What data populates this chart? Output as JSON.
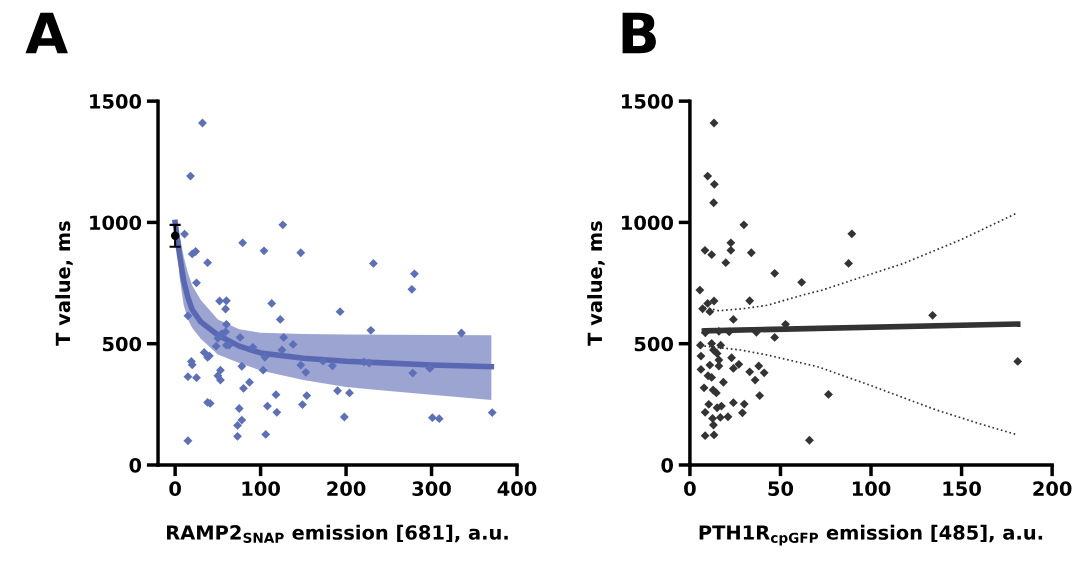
{
  "chart_data": [
    {
      "type": "scatter",
      "title": "A",
      "xlabel": "RAMP2$_{SNAP}$ emission [681], a.u.",
      "ylabel": "T value, ms",
      "xlim": [
        -20,
        400
      ],
      "xticks": [
        0,
        100,
        200,
        300,
        400
      ],
      "ylim": [
        0,
        1500
      ],
      "yticks": [
        0,
        500,
        1000,
        1500
      ],
      "marker": "diamond",
      "series": [
        {
          "type": "line",
          "color": "#5a68b4",
          "line_style": "solid",
          "marker": "none",
          "x": [
            0,
            5,
            10,
            15,
            20,
            30,
            50,
            75,
            100,
            150,
            200,
            250,
            300,
            370
          ],
          "values": [
            1000,
            870,
            760,
            690,
            640,
            590,
            536,
            490,
            462,
            440,
            428,
            420,
            412,
            405
          ],
          "lower": [
            990,
            780,
            660,
            600,
            565,
            520,
            455,
            420,
            390,
            350,
            322,
            305,
            290,
            268
          ],
          "upper": [
            1010,
            950,
            860,
            790,
            740,
            680,
            600,
            560,
            545,
            540,
            538,
            537,
            536,
            535
          ]
        },
        {
          "type": "scatter",
          "color": "#5b70b8",
          "x": [
            32,
            18,
            11,
            126,
            79,
            104,
            147,
            20,
            24,
            38,
            232,
            280,
            277,
            25,
            15,
            52,
            60,
            59,
            113,
            193,
            123,
            229,
            335,
            60,
            59,
            50,
            54,
            48,
            60,
            63,
            76,
            91,
            127,
            125,
            138,
            105,
            34,
            38,
            40,
            19,
            20,
            78,
            147,
            153,
            173,
            184,
            221,
            227,
            278,
            298,
            15,
            25,
            53,
            50,
            53,
            103,
            87,
            80,
            118,
            154,
            190,
            204,
            38,
            41,
            75,
            108,
            119,
            149,
            198,
            301,
            309,
            371,
            78,
            73,
            73,
            106,
            15
          ],
          "values": [
            1410,
            1191,
            952,
            990,
            916,
            883,
            875,
            870,
            880,
            834,
            831,
            788,
            724,
            751,
            615,
            676,
            677,
            643,
            666,
            632,
            600,
            555,
            544,
            580,
            549,
            522,
            540,
            490,
            494,
            494,
            526,
            485,
            526,
            474,
            497,
            444,
            464,
            444,
            450,
            427,
            413,
            407,
            412,
            382,
            428,
            409,
            425,
            420,
            379,
            398,
            364,
            360,
            391,
            368,
            350,
            391,
            341,
            316,
            290,
            286,
            306,
            297,
            258,
            254,
            233,
            243,
            217,
            249,
            198,
            195,
            191,
            216,
            185,
            163,
            118,
            126,
            100
          ]
        },
        {
          "type": "scatter",
          "color": "#000000",
          "marker": "circle",
          "x": [
            0
          ],
          "values": [
            945
          ],
          "errors": [
            45
          ]
        }
      ]
    },
    {
      "type": "scatter",
      "title": "B",
      "xlabel": "PTH1R$_{cpGFP}$ emission [485], a.u.",
      "ylabel": "T value, ms",
      "xlim": [
        0,
        200
      ],
      "xticks": [
        0,
        50,
        100,
        150,
        200
      ],
      "ylim": [
        0,
        1500
      ],
      "yticks": [
        0,
        500,
        1000,
        1500
      ],
      "marker": "diamond",
      "series": [
        {
          "type": "scatter",
          "color": "#333333",
          "x": [
            13.3,
            9.8,
            13.5,
            13.1,
            29.8,
            89.4,
            8.3,
            12,
            22.6,
            22.6,
            33.9,
            19.8,
            87.6,
            46.8,
            61.7,
            5.5,
            7,
            9.8,
            13.3,
            11,
            33,
            24,
            52.8,
            134,
            181,
            76.5,
            66,
            36.7,
            46.8,
            8.5,
            16,
            21.7,
            5.8,
            12,
            17,
            13,
            16,
            15,
            6.1,
            23,
            27,
            11,
            16,
            24,
            6.1,
            33,
            38,
            41,
            10,
            12,
            18.5,
            36,
            7.8,
            12.8,
            14.6,
            38.5,
            10.4,
            17.4,
            24,
            30,
            15,
            8.4,
            29,
            12.5,
            16.8,
            21,
            13,
            8.4,
            13.3
          ],
          "values": [
            1410,
            1191,
            1157,
            1081,
            990,
            953,
            885,
            867,
            916,
            885,
            875,
            834,
            831,
            790,
            753,
            721,
            644,
            666,
            676,
            632,
            677,
            600,
            580,
            617,
            427,
            291,
            102,
            547,
            526,
            545,
            551,
            549,
            494,
            501,
            494,
            474,
            433,
            460,
            449,
            442,
            415,
            412,
            408,
            398,
            394,
            384,
            408,
            380,
            368,
            361,
            341,
            350,
            318,
            309,
            297,
            286,
            250,
            243,
            257,
            251,
            236,
            217,
            215,
            192,
            196,
            199,
            165,
            121,
            124
          ]
        },
        {
          "type": "line",
          "color": "#333333",
          "line_style": "solid",
          "marker": "none",
          "x": [
            8,
            181
          ],
          "values": [
            553,
            581
          ]
        },
        {
          "type": "line",
          "color": "#333333",
          "line_style": "dotted",
          "marker": "none",
          "x": [
            8,
            16,
            30,
            43,
            62,
            73,
            95,
            118,
            150,
            181
          ],
          "values": [
            650,
            636,
            645,
            659,
            700,
            721,
            775,
            831,
            930,
            1040
          ]
        },
        {
          "type": "line",
          "color": "#333333",
          "line_style": "dotted",
          "marker": "none",
          "x": [
            8,
            15,
            28,
            43,
            71,
            99,
            136,
            160,
            181
          ],
          "values": [
            490,
            485,
            474,
            453,
            404,
            330,
            227,
            170,
            124
          ]
        }
      ]
    }
  ]
}
